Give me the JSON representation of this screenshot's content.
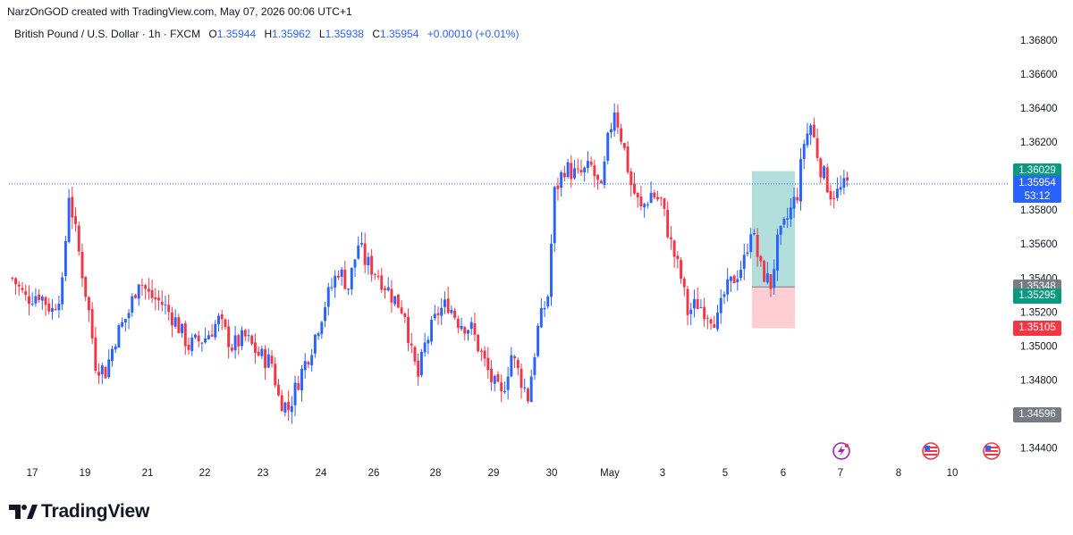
{
  "header": {
    "title": "NarzOnGOD created with TradingView.com, May 07, 2026 00:06 UTC+1"
  },
  "symbol": {
    "name": "British Pound / U.S. Dollar · 1h · FXCM",
    "open_label": "O",
    "open": "1.35944",
    "high_label": "H",
    "high": "1.35962",
    "low_label": "L",
    "low": "1.35938",
    "close_label": "C",
    "close": "1.35954",
    "change": "+0.00010 (+0.01%)"
  },
  "colors": {
    "up": "#2962ff",
    "down": "#f23645",
    "profit_zone": "#b2dfdb",
    "loss_zone": "#ffcdd2",
    "current_price_line": "#2962ff",
    "grid": "#ffffff"
  },
  "price_badges": [
    {
      "name": "target-price-badge",
      "value": "1.36029",
      "color": "#089981"
    },
    {
      "name": "current-price-badge",
      "value": "1.35954",
      "sub": "53:12",
      "color": "#2962ff"
    },
    {
      "name": "entry-price-badge",
      "value": "1.35348",
      "color": "#787b86"
    },
    {
      "name": "close-price-badge",
      "value": "1.35295",
      "color": "#089981"
    },
    {
      "name": "stop-price-badge",
      "value": "1.35105",
      "color": "#f23645"
    },
    {
      "name": "low-price-badge",
      "value": "1.34596",
      "color": "#787b86"
    }
  ],
  "chart_data": {
    "type": "candlestick",
    "y_axis": {
      "ylim": [
        1.3433,
        1.3693
      ],
      "ticks": [
        "1.34400",
        "1.34800",
        "1.35000",
        "1.35200",
        "1.35400",
        "1.35600",
        "1.35800",
        "1.36200",
        "1.36400",
        "1.36600",
        "1.36800"
      ]
    },
    "x_axis": {
      "ticks": [
        "17",
        "19",
        "21",
        "22",
        "23",
        "24",
        "26",
        "28",
        "29",
        "30",
        "May",
        "3",
        "5",
        "6",
        "7",
        "8",
        "10"
      ]
    },
    "current_price": 1.35954,
    "position": {
      "type": "long",
      "entry": 1.35348,
      "target": 1.36029,
      "stop": 1.35105
    },
    "anchors": [
      [
        0,
        1.354
      ],
      [
        4,
        1.3528
      ],
      [
        8,
        1.3531
      ],
      [
        12,
        1.3521
      ],
      [
        15,
        1.3535
      ],
      [
        17,
        1.359
      ],
      [
        20,
        1.3555
      ],
      [
        23,
        1.352
      ],
      [
        25,
        1.349
      ],
      [
        28,
        1.3485
      ],
      [
        31,
        1.3505
      ],
      [
        35,
        1.352
      ],
      [
        38,
        1.354
      ],
      [
        41,
        1.353
      ],
      [
        45,
        1.3525
      ],
      [
        49,
        1.3515
      ],
      [
        53,
        1.35
      ],
      [
        58,
        1.3505
      ],
      [
        62,
        1.3515
      ],
      [
        66,
        1.35
      ],
      [
        70,
        1.3505
      ],
      [
        74,
        1.3495
      ],
      [
        78,
        1.349
      ],
      [
        80,
        1.347
      ],
      [
        83,
        1.3463
      ],
      [
        86,
        1.348
      ],
      [
        90,
        1.35
      ],
      [
        94,
        1.3525
      ],
      [
        98,
        1.3545
      ],
      [
        101,
        1.3535
      ],
      [
        104,
        1.356
      ],
      [
        106,
        1.355
      ],
      [
        110,
        1.3542
      ],
      [
        114,
        1.353
      ],
      [
        118,
        1.352
      ],
      [
        120,
        1.3495
      ],
      [
        122,
        1.3482
      ],
      [
        124,
        1.35
      ],
      [
        128,
        1.352
      ],
      [
        131,
        1.3525
      ],
      [
        134,
        1.3515
      ],
      [
        138,
        1.351
      ],
      [
        141,
        1.3495
      ],
      [
        144,
        1.348
      ],
      [
        147,
        1.347
      ],
      [
        150,
        1.3495
      ],
      [
        153,
        1.348
      ],
      [
        155,
        1.347
      ],
      [
        158,
        1.351
      ],
      [
        161,
        1.353
      ],
      [
        163,
        1.359
      ],
      [
        166,
        1.3605
      ],
      [
        170,
        1.36
      ],
      [
        174,
        1.3605
      ],
      [
        177,
        1.359
      ],
      [
        179,
        1.362
      ],
      [
        181,
        1.364
      ],
      [
        184,
        1.3615
      ],
      [
        186,
        1.3595
      ],
      [
        189,
        1.358
      ],
      [
        192,
        1.359
      ],
      [
        195,
        1.3585
      ],
      [
        198,
        1.356
      ],
      [
        201,
        1.354
      ],
      [
        203,
        1.352
      ],
      [
        206,
        1.3525
      ],
      [
        209,
        1.352
      ],
      [
        212,
        1.3515
      ],
      [
        214,
        1.353
      ],
      [
        217,
        1.354
      ],
      [
        220,
        1.355
      ],
      [
        222,
        1.357
      ],
      [
        225,
        1.3545
      ],
      [
        228,
        1.3536
      ],
      [
        230,
        1.356
      ],
      [
        233,
        1.3575
      ],
      [
        236,
        1.359
      ],
      [
        238,
        1.362
      ],
      [
        240,
        1.363
      ],
      [
        243,
        1.3605
      ],
      [
        246,
        1.359
      ],
      [
        248,
        1.359
      ],
      [
        251,
        1.3595
      ]
    ],
    "total_bars": 252
  }
}
